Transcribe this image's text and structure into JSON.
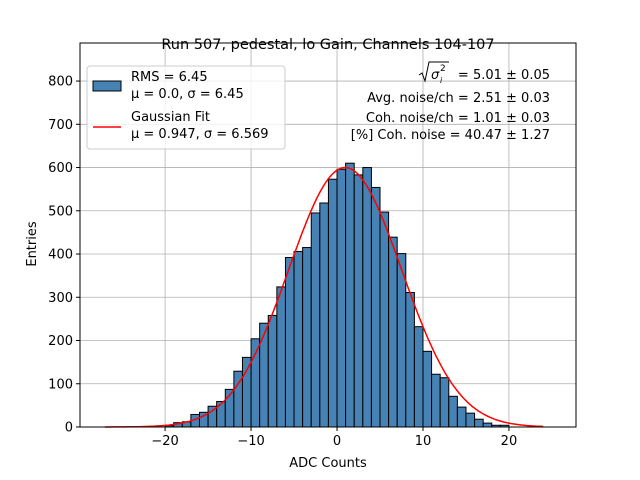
{
  "chart_data": {
    "type": "bar",
    "title": "Run 507, pedestal, lo Gain, Channels 104-107",
    "xlabel": "ADC Counts",
    "ylabel": "Entries",
    "xlim": [
      -29.9,
      27.8
    ],
    "ylim": [
      0,
      888
    ],
    "grid": true,
    "xticks": [
      -20,
      -10,
      0,
      10,
      20
    ],
    "yticks": [
      0,
      100,
      200,
      300,
      400,
      500,
      600,
      700,
      800
    ],
    "bin_edges_start": -20,
    "bin_width": 1,
    "values": [
      3,
      10,
      12,
      29,
      34,
      48,
      59,
      87,
      129,
      161,
      204,
      240,
      258,
      324,
      392,
      406,
      415,
      495,
      518,
      573,
      596,
      610,
      583,
      600,
      554,
      497,
      439,
      401,
      311,
      232,
      175,
      122,
      114,
      71,
      46,
      32,
      18,
      9,
      4,
      4
    ],
    "bar_color": "#4682b4",
    "fit": {
      "type": "gaussian",
      "amplitude": 600,
      "mu": 0.947,
      "sigma": 6.569,
      "range": [
        -27,
        24
      ],
      "color": "#ff0000"
    },
    "legend": {
      "placement": "upper-left",
      "entries": [
        {
          "line1": "RMS = 6.45",
          "line2": "μ = 0.0, σ = 6.45"
        },
        {
          "line1": "Gaussian Fit",
          "line2": "μ = 0.947, σ = 6.569"
        }
      ]
    },
    "annotations": {
      "sigma_label": "= 5.01 ± 0.05",
      "avg_noise": "Avg. noise/ch = 2.51 ± 0.03",
      "coh_noise": "Coh. noise/ch = 1.01 ± 0.03",
      "coh_pct": "[%] Coh. noise = 40.47 ± 1.27"
    }
  }
}
